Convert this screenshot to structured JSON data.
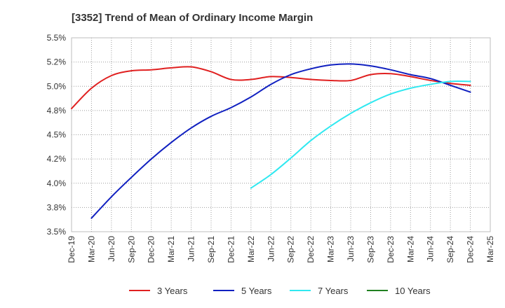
{
  "chart_data": {
    "type": "line",
    "title": "[3352]  Trend of Mean of Ordinary Income Margin",
    "xlabel": "",
    "ylabel": "",
    "x_ticks": [
      "Dec-19",
      "Mar-20",
      "Jun-20",
      "Sep-20",
      "Dec-20",
      "Mar-21",
      "Jun-21",
      "Sep-21",
      "Dec-21",
      "Mar-22",
      "Jun-22",
      "Sep-22",
      "Dec-22",
      "Mar-23",
      "Jun-23",
      "Sep-23",
      "Dec-23",
      "Mar-24",
      "Jun-24",
      "Sep-24",
      "Dec-24",
      "Mar-25"
    ],
    "y_ticks": [
      "3.5%",
      "3.8%",
      "4.0%",
      "4.2%",
      "4.5%",
      "4.8%",
      "5.0%",
      "5.2%",
      "5.5%"
    ],
    "ylim": [
      3.5,
      5.5
    ],
    "grid": true,
    "legend_position": "bottom",
    "series": [
      {
        "name": "3 Years",
        "color": "#e02020",
        "points": [
          [
            "Dec-19",
            4.77
          ],
          [
            "Mar-20",
            4.98
          ],
          [
            "Jun-20",
            5.11
          ],
          [
            "Sep-20",
            5.16
          ],
          [
            "Dec-20",
            5.17
          ],
          [
            "Mar-21",
            5.19
          ],
          [
            "Jun-21",
            5.2
          ],
          [
            "Sep-21",
            5.15
          ],
          [
            "Dec-21",
            5.07
          ],
          [
            "Mar-22",
            5.07
          ],
          [
            "Jun-22",
            5.1
          ],
          [
            "Sep-22",
            5.09
          ],
          [
            "Dec-22",
            5.07
          ],
          [
            "Mar-23",
            5.06
          ],
          [
            "Jun-23",
            5.06
          ],
          [
            "Sep-23",
            5.12
          ],
          [
            "Dec-23",
            5.13
          ],
          [
            "Mar-24",
            5.1
          ],
          [
            "Jun-24",
            5.06
          ],
          [
            "Sep-24",
            5.03
          ],
          [
            "Dec-24",
            5.01
          ]
        ]
      },
      {
        "name": "5 Years",
        "color": "#1020c0",
        "points": [
          [
            "Mar-20",
            3.64
          ],
          [
            "Jun-20",
            3.86
          ],
          [
            "Sep-20",
            4.06
          ],
          [
            "Dec-20",
            4.25
          ],
          [
            "Mar-21",
            4.42
          ],
          [
            "Jun-21",
            4.57
          ],
          [
            "Sep-21",
            4.69
          ],
          [
            "Dec-21",
            4.78
          ],
          [
            "Mar-22",
            4.89
          ],
          [
            "Jun-22",
            5.02
          ],
          [
            "Sep-22",
            5.12
          ],
          [
            "Dec-22",
            5.18
          ],
          [
            "Mar-23",
            5.22
          ],
          [
            "Jun-23",
            5.23
          ],
          [
            "Sep-23",
            5.21
          ],
          [
            "Dec-23",
            5.17
          ],
          [
            "Mar-24",
            5.12
          ],
          [
            "Jun-24",
            5.08
          ],
          [
            "Sep-24",
            5.01
          ],
          [
            "Dec-24",
            4.94
          ]
        ]
      },
      {
        "name": "7 Years",
        "color": "#30e8f0",
        "points": [
          [
            "Mar-22",
            3.95
          ],
          [
            "Jun-22",
            4.09
          ],
          [
            "Sep-22",
            4.26
          ],
          [
            "Dec-22",
            4.44
          ],
          [
            "Mar-23",
            4.59
          ],
          [
            "Jun-23",
            4.72
          ],
          [
            "Sep-23",
            4.83
          ],
          [
            "Dec-23",
            4.92
          ],
          [
            "Mar-24",
            4.98
          ],
          [
            "Jun-24",
            5.02
          ],
          [
            "Sep-24",
            5.05
          ],
          [
            "Dec-24",
            5.05
          ]
        ]
      },
      {
        "name": "10 Years",
        "color": "#208020",
        "points": []
      }
    ]
  }
}
